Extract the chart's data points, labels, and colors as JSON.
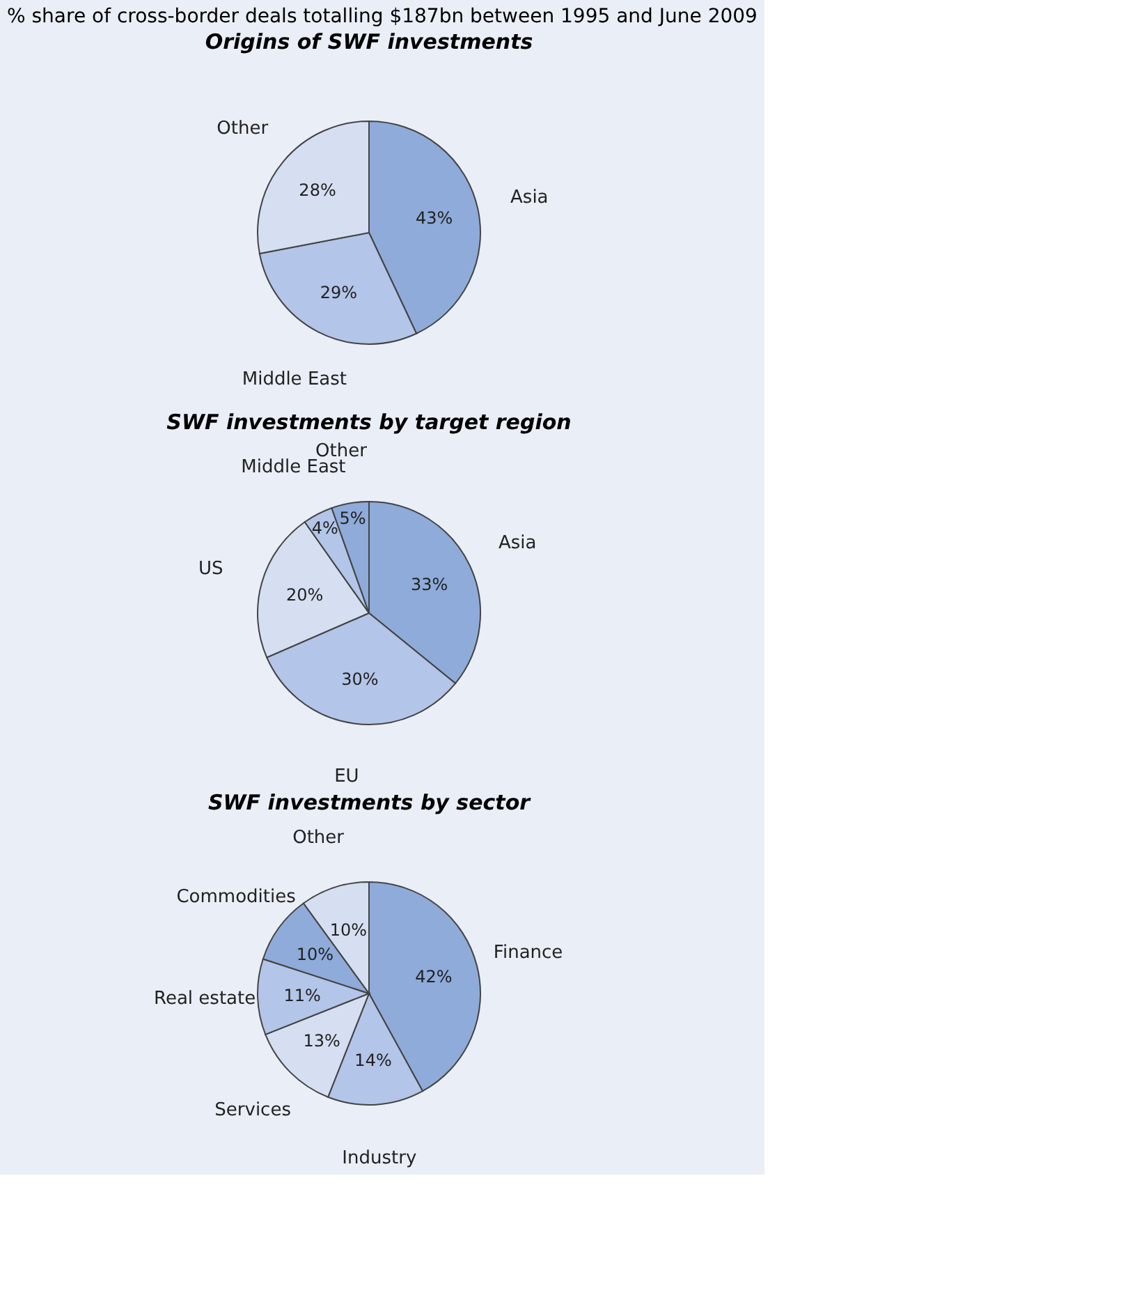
{
  "chart_data": [
    {
      "type": "pie",
      "title": "Origins of SWF investments",
      "annotations": [
        "% share of cross-border deals totalling $187bn between 1995 and June 2009"
      ],
      "categories": [
        "Asia",
        "Middle East",
        "Other"
      ],
      "values": [
        43,
        29,
        28
      ],
      "value_labels": [
        "43%",
        "29%",
        "28%"
      ],
      "colors": [
        "#8eabda",
        "#b3c5e8",
        "#d5dff1"
      ]
    },
    {
      "type": "pie",
      "title": "SWF investments by target region",
      "categories": [
        "Asia",
        "EU",
        "US",
        "Middle East",
        "Other"
      ],
      "values": [
        33,
        30,
        20,
        4,
        5
      ],
      "value_labels": [
        "33%",
        "30%",
        "20%",
        "4%",
        "5%"
      ],
      "colors": [
        "#8eabda",
        "#b3c5e8",
        "#d5dff1",
        "#b3c5e8",
        "#8eabda"
      ]
    },
    {
      "type": "pie",
      "title": "SWF investments by sector",
      "categories": [
        "Finance",
        "Industry",
        "Services",
        "Real estate",
        "Commodities",
        "Other"
      ],
      "values": [
        42,
        14,
        13,
        11,
        10,
        10
      ],
      "value_labels": [
        "42%",
        "14%",
        "13%",
        "11%",
        "10%",
        "10%"
      ],
      "colors": [
        "#8eabda",
        "#b3c5e8",
        "#d5dff1",
        "#b3c5e8",
        "#8eabda",
        "#d5dff1"
      ]
    }
  ]
}
